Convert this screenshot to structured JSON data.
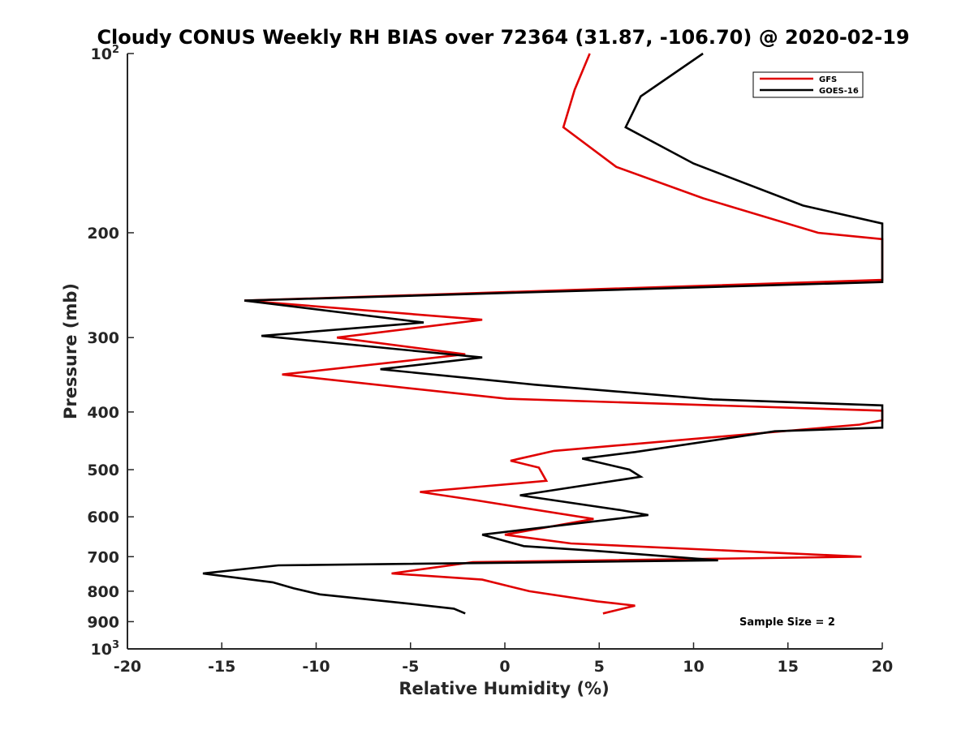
{
  "chart_data": {
    "type": "line",
    "title": "Cloudy CONUS Weekly RH BIAS over 72364 (31.87, -106.70) @ 2020-02-19",
    "xlabel": "Relative Humidity (%)",
    "ylabel": "Pressure (mb)",
    "xlim": [
      -20,
      20
    ],
    "ylim": [
      100,
      1000
    ],
    "y_scale": "log",
    "y_reversed": true,
    "x_ticks": [
      "-20",
      "-15",
      "-10",
      "-5",
      "0",
      "5",
      "10",
      "15",
      "20"
    ],
    "y_ticks": [
      {
        "value": 100,
        "label": "10",
        "sup": "2"
      },
      {
        "value": 200,
        "label": "200",
        "sup": ""
      },
      {
        "value": 300,
        "label": "300",
        "sup": ""
      },
      {
        "value": 400,
        "label": "400",
        "sup": ""
      },
      {
        "value": 500,
        "label": "500",
        "sup": ""
      },
      {
        "value": 600,
        "label": "600",
        "sup": ""
      },
      {
        "value": 700,
        "label": "700",
        "sup": ""
      },
      {
        "value": 800,
        "label": "800",
        "sup": ""
      },
      {
        "value": 900,
        "label": "900",
        "sup": ""
      },
      {
        "value": 1000,
        "label": "10",
        "sup": "3"
      }
    ],
    "grid": false,
    "legend_position": "top-right",
    "annotation": "Sample Size = 2",
    "series": [
      {
        "name": "GFS",
        "color": "#e00000",
        "points": [
          [
            4.5,
            100
          ],
          [
            3.7,
            115
          ],
          [
            3.1,
            133
          ],
          [
            5.9,
            155
          ],
          [
            10.5,
            175
          ],
          [
            16.6,
            200
          ],
          [
            20,
            205
          ],
          [
            20,
            240
          ],
          [
            -13.8,
            260
          ],
          [
            -1.2,
            280
          ],
          [
            -8.9,
            300
          ],
          [
            -2.1,
            320
          ],
          [
            -11.8,
            346
          ],
          [
            0.1,
            380
          ],
          [
            20,
            398
          ],
          [
            20,
            413
          ],
          [
            18.8,
            420
          ],
          [
            2.6,
            465
          ],
          [
            0.3,
            483
          ],
          [
            1.8,
            496
          ],
          [
            2.2,
            522
          ],
          [
            -4.5,
            545
          ],
          [
            -1.5,
            563
          ],
          [
            4.7,
            605
          ],
          [
            0.0,
            643
          ],
          [
            3.5,
            665
          ],
          [
            18.9,
            700
          ],
          [
            -1.7,
            715
          ],
          [
            -6.0,
            747
          ],
          [
            -1.2,
            765
          ],
          [
            1.3,
            800
          ],
          [
            4.9,
            832
          ],
          [
            6.9,
            846
          ],
          [
            5.2,
            872
          ]
        ]
      },
      {
        "name": "GOES-16",
        "color": "#000000",
        "points": [
          [
            10.5,
            100
          ],
          [
            7.2,
            118
          ],
          [
            6.4,
            133
          ],
          [
            10.0,
            153
          ],
          [
            15.8,
            180
          ],
          [
            20,
            193
          ],
          [
            20,
            242
          ],
          [
            -13.8,
            260
          ],
          [
            -4.3,
            283
          ],
          [
            -12.9,
            298
          ],
          [
            -1.2,
            324
          ],
          [
            -6.6,
            339
          ],
          [
            1.6,
            360
          ],
          [
            11.0,
            381
          ],
          [
            20,
            390
          ],
          [
            20,
            425
          ],
          [
            14.3,
            431
          ],
          [
            6.9,
            467
          ],
          [
            4.1,
            479
          ],
          [
            6.6,
            500
          ],
          [
            7.2,
            514
          ],
          [
            0.8,
            552
          ],
          [
            6.2,
            585
          ],
          [
            7.6,
            596
          ],
          [
            -1.2,
            643
          ],
          [
            1.0,
            672
          ],
          [
            4.7,
            684
          ],
          [
            11.3,
            710
          ],
          [
            -12.0,
            724
          ],
          [
            -16.0,
            747
          ],
          [
            -12.3,
            773
          ],
          [
            -11.2,
            791
          ],
          [
            -9.8,
            810
          ],
          [
            -5.0,
            840
          ],
          [
            -2.7,
            856
          ],
          [
            -2.1,
            872
          ]
        ]
      }
    ]
  }
}
